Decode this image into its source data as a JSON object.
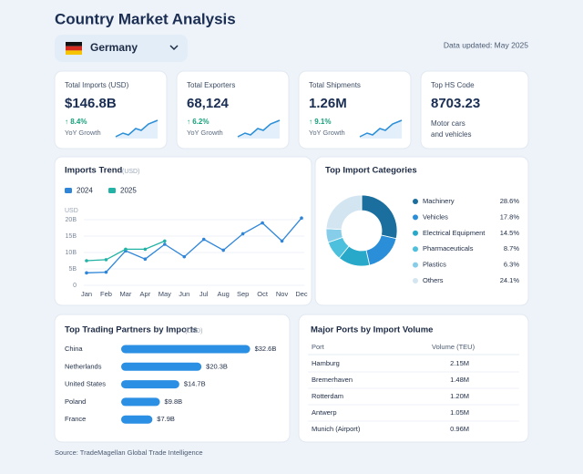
{
  "header": {
    "title": "Country Market Analysis",
    "country": "Germany",
    "updated": "Data updated: May 2025"
  },
  "kpis": [
    {
      "label": "Total Imports (USD)",
      "value": "$146.8B",
      "change": "↑ 8.4%",
      "change_label": "YoY Growth"
    },
    {
      "label": "Total Exporters",
      "value": "68,124",
      "change": "↑ 6.2%",
      "change_label": "YoY Growth"
    },
    {
      "label": "Total Shipments",
      "value": "1.26M",
      "change": "↑ 9.1%",
      "change_label": "YoY Growth"
    },
    {
      "label": "Top HS Code",
      "value": "8703.23",
      "description": "Motor cars and vehicles"
    }
  ],
  "imports_trend": {
    "type": "line",
    "title": "Imports Trend",
    "unit": "(USD)",
    "y_label": "USD",
    "categories": [
      "Jan",
      "Feb",
      "Mar",
      "Apr",
      "May",
      "Jun",
      "Jul",
      "Aug",
      "Sep",
      "Oct",
      "Nov",
      "Dec"
    ],
    "series": [
      {
        "name": "2024",
        "color": "#2f86d8",
        "values": [
          3.8,
          4,
          10.5,
          8,
          12.5,
          8.7,
          14,
          10.7,
          15.7,
          19,
          13.5,
          20.5
        ]
      },
      {
        "name": "2025",
        "color": "#22b3a6",
        "values": [
          7.5,
          7.8,
          11,
          11,
          13.5,
          null,
          null,
          null,
          null,
          null,
          null,
          null
        ]
      }
    ],
    "ylim": [
      0,
      20
    ],
    "yticks": [
      0,
      {
        "value": 5,
        "label": "5B"
      },
      {
        "value": 10,
        "label": "10B"
      },
      {
        "value": 15,
        "label": "15B"
      },
      {
        "value": 20,
        "label": "20B"
      }
    ]
  },
  "import_categories": {
    "type": "pie",
    "title": "Top Import Categories",
    "categories": [
      "Machinery",
      "Vehicles",
      "Electrical Equipment",
      "Pharmaceuticals",
      "Plastics",
      "Others"
    ],
    "values": [
      28.6,
      17.8,
      14.5,
      8.7,
      6.3,
      24.1
    ],
    "value_labels": [
      "28.6%",
      "17.8%",
      "14.5%",
      "8.7%",
      "6.3%",
      "24.1%"
    ],
    "colors": [
      "#1b6f9e",
      "#2a8fd8",
      "#28a9c9",
      "#4cc0dc",
      "#86cdea",
      "#d4e5f2"
    ]
  },
  "trading_partners": {
    "type": "bar",
    "title": "Top Trading Partners by Imports",
    "unit": "(USD)",
    "categories": [
      "China",
      "Netherlands",
      "United States",
      "Poland",
      "France"
    ],
    "values": [
      32.6,
      20.3,
      14.7,
      9.8,
      7.9
    ],
    "value_labels": [
      "$32.6B",
      "$20.3B",
      "$14.7B",
      "$9.8B",
      "$7.9B"
    ],
    "color": "#2b8fe3",
    "xlim": [
      0,
      35
    ]
  },
  "ports": {
    "title": "Major Ports by Import Volume",
    "header": [
      "Port",
      "Volume (TEU)"
    ],
    "rows": [
      [
        "Hamburg",
        "2.15M"
      ],
      [
        "Bremerhaven",
        "1.48M"
      ],
      [
        "Rotterdam",
        "1.20M"
      ],
      [
        "Antwerp",
        "1.05M"
      ],
      [
        "Munich (Airport)",
        "0.96M"
      ]
    ]
  },
  "footer": {
    "source": "Source: TradeMagellan Global Trade Intelligence"
  }
}
